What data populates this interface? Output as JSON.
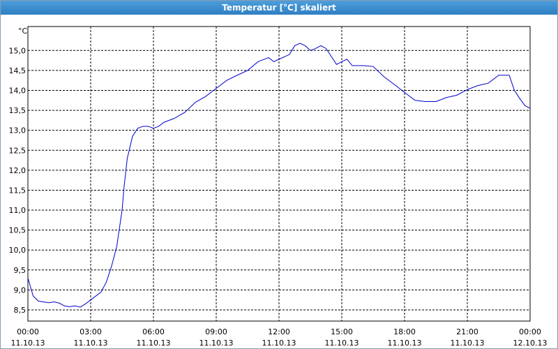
{
  "chart_data": {
    "type": "line",
    "title": "Temperatur [°C] skaliert",
    "y_label": "°C",
    "x": [
      0,
      0.25,
      0.5,
      1,
      1.25,
      1.5,
      1.75,
      2,
      2.25,
      2.5,
      2.75,
      3,
      3.5,
      3.75,
      4,
      4.25,
      4.5,
      4.6,
      4.75,
      5,
      5.25,
      5.5,
      5.75,
      6,
      6.25,
      6.5,
      7,
      7.5,
      8,
      8.5,
      9,
      9.5,
      10,
      10.5,
      11,
      11.5,
      11.75,
      12,
      12.5,
      12.75,
      13,
      13.25,
      13.5,
      13.75,
      14,
      14.25,
      14.5,
      14.75,
      15,
      15.25,
      15.5,
      16,
      16.5,
      17,
      17.5,
      18,
      18.5,
      19,
      19.5,
      20,
      20.5,
      21,
      21.5,
      22,
      22.5,
      23,
      23.25,
      23.5,
      23.75,
      24
    ],
    "series": [
      {
        "name": "Temperatur",
        "color": "#0000cc",
        "values": [
          9.3,
          8.85,
          8.72,
          8.68,
          8.7,
          8.67,
          8.6,
          8.58,
          8.6,
          8.57,
          8.65,
          8.75,
          8.95,
          9.2,
          9.6,
          10.1,
          11.0,
          11.6,
          12.3,
          12.85,
          13.05,
          13.1,
          13.1,
          13.05,
          13.1,
          13.2,
          13.3,
          13.45,
          13.7,
          13.85,
          14.05,
          14.25,
          14.38,
          14.5,
          14.72,
          14.82,
          14.72,
          14.78,
          14.9,
          15.12,
          15.18,
          15.12,
          15.0,
          15.05,
          15.12,
          15.05,
          14.85,
          14.65,
          14.72,
          14.78,
          14.62,
          14.62,
          14.6,
          14.35,
          14.15,
          13.95,
          13.75,
          13.72,
          13.72,
          13.82,
          13.88,
          14.02,
          14.12,
          14.18,
          14.38,
          14.38,
          14.0,
          13.8,
          13.62,
          13.55
        ]
      }
    ],
    "xlim": [
      0,
      24
    ],
    "xticks": [
      {
        "value": 0,
        "label": "00:00"
      },
      {
        "value": 3,
        "label": "03:00"
      },
      {
        "value": 6,
        "label": "06:00"
      },
      {
        "value": 9,
        "label": "09:00"
      },
      {
        "value": 12,
        "label": "12:00"
      },
      {
        "value": 15,
        "label": "15:00"
      },
      {
        "value": 18,
        "label": "18:00"
      },
      {
        "value": 21,
        "label": "21:00"
      },
      {
        "value": 24,
        "label": "00:00"
      }
    ],
    "xtick_dates": [
      "11.10.13",
      "11.10.13",
      "11.10.13",
      "11.10.13",
      "11.10.13",
      "11.10.13",
      "11.10.13",
      "11.10.13",
      "12.10.13"
    ],
    "ylim": [
      8.22,
      15.6
    ],
    "yticks": [
      {
        "value": 8.5,
        "label": "8,5"
      },
      {
        "value": 9,
        "label": "9,0"
      },
      {
        "value": 9.5,
        "label": "9,5"
      },
      {
        "value": 10,
        "label": "10,0"
      },
      {
        "value": 10.5,
        "label": "10,5"
      },
      {
        "value": 11,
        "label": "11,0"
      },
      {
        "value": 11.5,
        "label": "11,5"
      },
      {
        "value": 12,
        "label": "12,0"
      },
      {
        "value": 12.5,
        "label": "12,5"
      },
      {
        "value": 13,
        "label": "13,0"
      },
      {
        "value": 13.5,
        "label": "13,5"
      },
      {
        "value": 14,
        "label": "14,0"
      },
      {
        "value": 14.5,
        "label": "14,5"
      },
      {
        "value": 15,
        "label": "15,0"
      }
    ],
    "grid": true
  }
}
